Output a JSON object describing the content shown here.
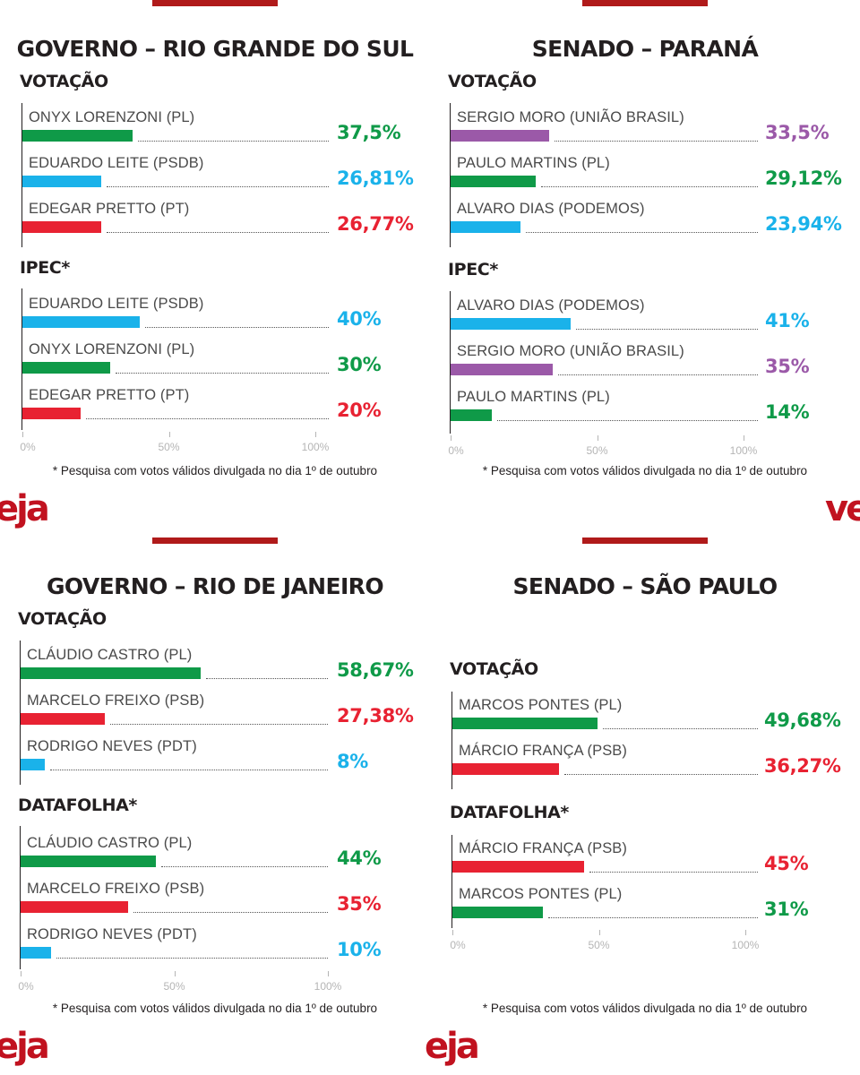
{
  "colors": {
    "green": "#0f9a48",
    "blue": "#1ab2ea",
    "red": "#e82232",
    "purple": "#9b59a8",
    "accent": "#b01a1a",
    "logo": "#c1121f"
  },
  "axis_ticks": [
    "0%",
    "50%",
    "100%"
  ],
  "brand": {
    "logo_left": "eja",
    "logo_right": "ve"
  },
  "chart_data": [
    {
      "type": "bar",
      "title": "GOVERNO – RIO GRANDE DO SUL",
      "xlim": [
        0,
        100
      ],
      "footnote": "* Pesquisa com votos válidos divulgada no dia 1º de outubro",
      "groups": [
        {
          "label": "VOTAÇÃO",
          "bars": [
            {
              "name": "ONYX LORENZONI (PL)",
              "value": 37.5,
              "label": "37,5%",
              "color": "green"
            },
            {
              "name": "EDUARDO LEITE (PSDB)",
              "value": 26.81,
              "label": "26,81%",
              "color": "blue"
            },
            {
              "name": "EDEGAR PRETTO (PT)",
              "value": 26.77,
              "label": "26,77%",
              "color": "red"
            }
          ]
        },
        {
          "label": "IPEC*",
          "bars": [
            {
              "name": "EDUARDO LEITE (PSDB)",
              "value": 40,
              "label": "40%",
              "color": "blue"
            },
            {
              "name": "ONYX LORENZONI (PL)",
              "value": 30,
              "label": "30%",
              "color": "green"
            },
            {
              "name": "EDEGAR PRETTO (PT)",
              "value": 20,
              "label": "20%",
              "color": "red"
            }
          ]
        }
      ]
    },
    {
      "type": "bar",
      "title": "SENADO – PARANÁ",
      "xlim": [
        0,
        100
      ],
      "footnote": "* Pesquisa com votos válidos divulgada no dia 1º de outubro",
      "groups": [
        {
          "label": "VOTAÇÃO",
          "bars": [
            {
              "name": "SERGIO MORO (UNIÃO BRASIL)",
              "value": 33.5,
              "label": "33,5%",
              "color": "purple"
            },
            {
              "name": "PAULO MARTINS (PL)",
              "value": 29.12,
              "label": "29,12%",
              "color": "green"
            },
            {
              "name": "ALVARO DIAS (PODEMOS)",
              "value": 23.94,
              "label": "23,94%",
              "color": "blue"
            }
          ]
        },
        {
          "label": "IPEC*",
          "bars": [
            {
              "name": "ALVARO DIAS (PODEMOS)",
              "value": 41,
              "label": "41%",
              "color": "blue"
            },
            {
              "name": "SERGIO MORO (UNIÃO BRASIL)",
              "value": 35,
              "label": "35%",
              "color": "purple"
            },
            {
              "name": "PAULO MARTINS (PL)",
              "value": 14,
              "label": "14%",
              "color": "green"
            }
          ]
        }
      ]
    },
    {
      "type": "bar",
      "title": "GOVERNO – RIO DE JANEIRO",
      "xlim": [
        0,
        100
      ],
      "footnote": "* Pesquisa com votos válidos divulgada no dia 1º de outubro",
      "groups": [
        {
          "label": "VOTAÇÃO",
          "bars": [
            {
              "name": "CLÁUDIO CASTRO (PL)",
              "value": 58.67,
              "label": "58,67%",
              "color": "green"
            },
            {
              "name": "MARCELO FREIXO (PSB)",
              "value": 27.38,
              "label": "27,38%",
              "color": "red"
            },
            {
              "name": "RODRIGO NEVES (PDT)",
              "value": 8,
              "label": "8%",
              "color": "blue"
            }
          ]
        },
        {
          "label": "DATAFOLHA*",
          "bars": [
            {
              "name": "CLÁUDIO CASTRO (PL)",
              "value": 44,
              "label": "44%",
              "color": "green"
            },
            {
              "name": "MARCELO FREIXO (PSB)",
              "value": 35,
              "label": "35%",
              "color": "red"
            },
            {
              "name": "RODRIGO NEVES (PDT)",
              "value": 10,
              "label": "10%",
              "color": "blue"
            }
          ]
        }
      ]
    },
    {
      "type": "bar",
      "title": "SENADO – SÃO PAULO",
      "xlim": [
        0,
        100
      ],
      "footnote": "* Pesquisa com votos válidos divulgada no dia 1º de outubro",
      "groups": [
        {
          "label": "VOTAÇÃO",
          "bars": [
            {
              "name": "MARCOS PONTES (PL)",
              "value": 49.68,
              "label": "49,68%",
              "color": "green"
            },
            {
              "name": "MÁRCIO FRANÇA (PSB)",
              "value": 36.27,
              "label": "36,27%",
              "color": "red"
            }
          ]
        },
        {
          "label": "DATAFOLHA*",
          "bars": [
            {
              "name": "MÁRCIO FRANÇA (PSB)",
              "value": 45,
              "label": "45%",
              "color": "red"
            },
            {
              "name": "MARCOS PONTES (PL)",
              "value": 31,
              "label": "31%",
              "color": "green"
            }
          ]
        }
      ]
    }
  ]
}
